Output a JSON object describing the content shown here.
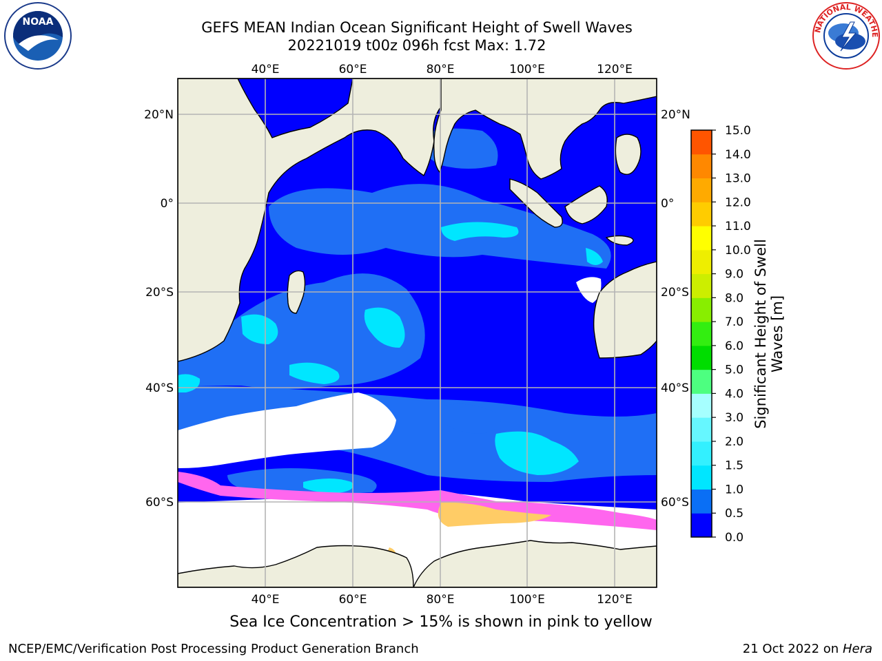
{
  "header": {
    "title_line1": "GEFS MEAN Indian Ocean Significant Height of Swell Waves",
    "title_line2": "20221019 t00z 096h fcst   Max: 1.72"
  },
  "logos": {
    "left": "noaa-logo",
    "left_text": "NOAA",
    "right": "national-weather-service-logo",
    "right_text": "NATIONAL WEATHER SERVICE"
  },
  "map": {
    "lon_labels": [
      "40°E",
      "60°E",
      "80°E",
      "100°E",
      "120°E"
    ],
    "lat_labels": [
      "20°N",
      "0°",
      "20°S",
      "40°S",
      "60°S"
    ],
    "colors": {
      "land": "#eeeedd",
      "coast": "#000000",
      "grid": "#b4b4b4",
      "ice_pink": "#ff66ee",
      "ice_yellow": "#ffcc66"
    }
  },
  "colorbar": {
    "label_line1": "Significant Height of Swell",
    "label_line2": "Waves [m]",
    "ticks": [
      "0.0",
      "0.5",
      "1.0",
      "1.5",
      "2.0",
      "3.0",
      "4.0",
      "5.0",
      "6.0",
      "7.0",
      "8.0",
      "9.0",
      "10.0",
      "11.0",
      "12.0",
      "13.0",
      "14.0",
      "15.0"
    ],
    "colors": [
      "#0000ff",
      "#0a6ff5",
      "#00e6ff",
      "#33f0ff",
      "#66f7ff",
      "#a6ffff",
      "#4dff80",
      "#00dd00",
      "#33ee11",
      "#88ee00",
      "#ccee00",
      "#eeee00",
      "#ffff00",
      "#ffcc00",
      "#ffaa00",
      "#ff8800",
      "#ff5500",
      "#ff0000"
    ]
  },
  "footer": {
    "ice_caption": "Sea Ice Concentration > 15% is shown in pink to yellow",
    "left": "NCEP/EMC/Verification Post Processing Product Generation Branch",
    "right_date": "21 Oct 2022 on",
    "right_host": "Hera"
  }
}
